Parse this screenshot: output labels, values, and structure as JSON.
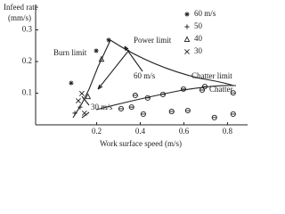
{
  "chart_data": {
    "type": "scatter",
    "ylabel": [
      "Infeed rate",
      "(mm/s)"
    ],
    "xlabel": "Work surface speed (m/s)",
    "xlim": [
      -0.08,
      0.88
    ],
    "xticks": [
      0.2,
      0.4,
      0.6,
      0.8
    ],
    "ylim": [
      0,
      0.37
    ],
    "yticks": [
      0.1,
      0.2,
      0.3
    ],
    "annotations": [
      "Burn limit",
      "Power limit",
      "60 m/s",
      "Chatter limit",
      "30 m/s"
    ],
    "series": [
      {
        "name": "60 m/s",
        "marker": "asterisk",
        "color": "#222",
        "x": [
          0.255,
          0.198,
          0.083
        ],
        "values": [
          0.268,
          0.234,
          0.132
        ]
      },
      {
        "name": "50",
        "marker": "plus",
        "color": "#222",
        "x": [
          0.124,
          0.1
        ],
        "values": [
          0.056,
          0.037
        ]
      },
      {
        "name": "40",
        "marker": "triangle",
        "color": "#222",
        "x": [
          0.222,
          0.16
        ],
        "values": [
          0.208,
          0.09
        ]
      },
      {
        "name": "30",
        "marker": "cross",
        "color": "#222",
        "x": [
          0.132,
          0.116,
          0.144
        ],
        "values": [
          0.099,
          0.076,
          0.037
        ]
      },
      {
        "name": "Chatter",
        "marker": "circle",
        "color": "#222",
        "x": [
          0.312,
          0.36,
          0.434,
          0.504,
          0.598,
          0.696,
          0.414,
          0.544,
          0.618,
          0.74,
          0.826,
          0.377,
          0.826
        ],
        "values": [
          0.051,
          0.056,
          0.085,
          0.096,
          0.113,
          0.121,
          0.034,
          0.042,
          0.045,
          0.023,
          0.034,
          0.093,
          0.101
        ]
      }
    ]
  }
}
